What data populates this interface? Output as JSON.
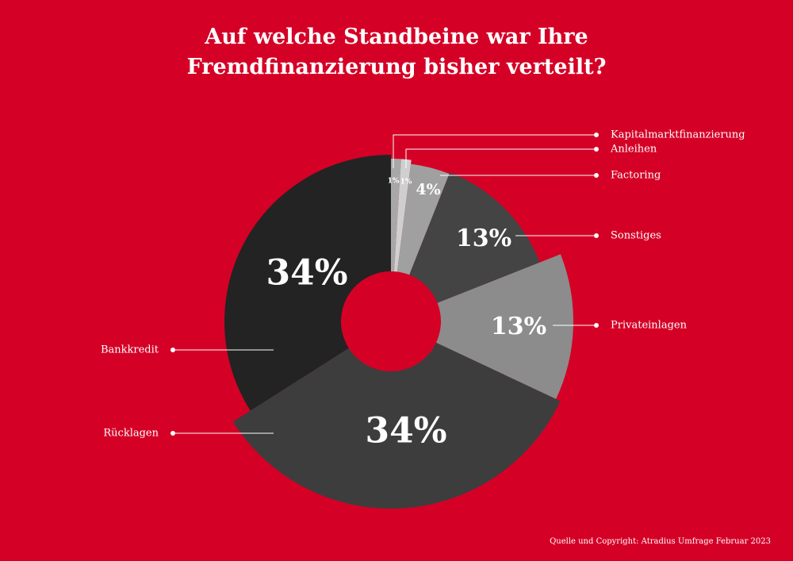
{
  "header": {
    "title_line1": "Auf welche Standbeine war Ihre",
    "title_line2": "Fremdfinanzierung bisher verteilt?"
  },
  "footer": {
    "source": "Quelle und Copyright: Atradius Umfrage Februar 2023"
  },
  "colors": {
    "background": "#d50026",
    "text": "#ffffff"
  },
  "chart_data": {
    "type": "pie",
    "donut": true,
    "title": "Auf welche Standbeine war Ihre Fremdfinanzierung bisher verteilt?",
    "unit": "%",
    "legend": "callout-labels",
    "slices": [
      {
        "label": "Kapitalmarktfinanzierung",
        "value": 1,
        "display": "1%",
        "color": "#a8a8a8"
      },
      {
        "label": "Anleihen",
        "value": 1,
        "display": "1%",
        "color": "#cfcfcf"
      },
      {
        "label": "Factoring",
        "value": 4,
        "display": "4%",
        "color": "#a0a0a0"
      },
      {
        "label": "Sonstiges",
        "value": 13,
        "display": "13%",
        "color": "#444444"
      },
      {
        "label": "Privateinlagen",
        "value": 13,
        "display": "13%",
        "color": "#8c8c8c"
      },
      {
        "label": "Rücklagen",
        "value": 34,
        "display": "34%",
        "color": "#3d3d3d"
      },
      {
        "label": "Bankkredit",
        "value": 34,
        "display": "34%",
        "color": "#232323"
      }
    ]
  }
}
